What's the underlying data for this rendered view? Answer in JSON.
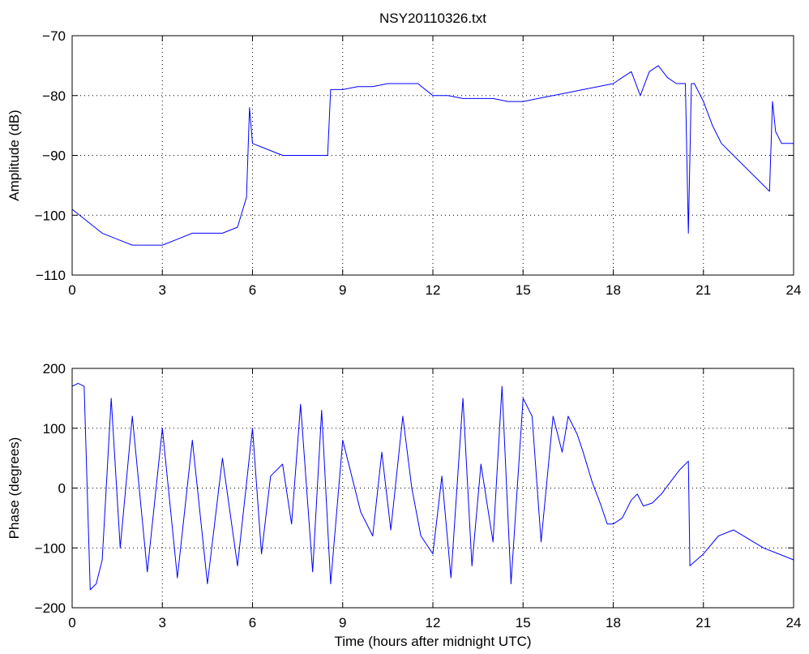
{
  "chart_data": [
    {
      "type": "line",
      "title": "NSY20110326.txt",
      "xlabel": "",
      "ylabel": "Amplitude (dB)",
      "xlim": [
        0,
        24
      ],
      "ylim": [
        -110,
        -70
      ],
      "x_ticks": [
        "0",
        "3",
        "6",
        "9",
        "12",
        "15",
        "18",
        "21",
        "24"
      ],
      "y_ticks": [
        "−70",
        "−80",
        "−90",
        "−100",
        "−110"
      ],
      "grid": true,
      "series": [
        {
          "color": "#0000ff",
          "x": [
            0,
            0.5,
            1,
            1.5,
            2,
            2.5,
            3,
            3.5,
            4,
            4.5,
            5,
            5.5,
            5.8,
            5.9,
            6,
            6.5,
            7,
            7.5,
            8,
            8.5,
            8.6,
            9,
            9.5,
            10,
            10.5,
            11,
            11.5,
            12,
            12.5,
            13,
            13.5,
            14,
            14.5,
            15,
            15.5,
            16,
            16.5,
            17,
            17.5,
            18,
            18.3,
            18.6,
            18.9,
            19.2,
            19.5,
            19.8,
            20.1,
            20.4,
            20.5,
            20.6,
            20.7,
            21,
            21.3,
            21.6,
            22,
            22.4,
            22.8,
            23.2,
            23.3,
            23.4,
            23.6,
            24
          ],
          "y": [
            -99,
            -101,
            -103,
            -104,
            -105,
            -105,
            -105,
            -104,
            -103,
            -103,
            -103,
            -102,
            -97,
            -82,
            -88,
            -89,
            -90,
            -90,
            -90,
            -90,
            -79,
            -79,
            -78.5,
            -78.5,
            -78,
            -78,
            -78,
            -80,
            -80,
            -80.5,
            -80.5,
            -80.5,
            -81,
            -81,
            -80.5,
            -80,
            -79.5,
            -79,
            -78.5,
            -78,
            -77,
            -76,
            -80,
            -76,
            -75,
            -77,
            -78,
            -78,
            -103,
            -78,
            -78,
            -81,
            -85,
            -88,
            -90,
            -92,
            -94,
            -96,
            -81,
            -86,
            -88,
            -88
          ]
        }
      ]
    },
    {
      "type": "line",
      "title": "",
      "xlabel": "Time (hours after midnight UTC)",
      "ylabel": "Phase (degrees)",
      "xlim": [
        0,
        24
      ],
      "ylim": [
        -200,
        200
      ],
      "x_ticks": [
        "0",
        "3",
        "6",
        "9",
        "12",
        "15",
        "18",
        "21",
        "24"
      ],
      "y_ticks": [
        "200",
        "100",
        "0",
        "−100",
        "−200"
      ],
      "grid": true,
      "series": [
        {
          "color": "#0000ff",
          "x": [
            0,
            0.2,
            0.4,
            0.6,
            0.8,
            1,
            1.3,
            1.6,
            2,
            2.5,
            3,
            3.5,
            4,
            4.5,
            5,
            5.5,
            6,
            6.3,
            6.6,
            7,
            7.3,
            7.6,
            8,
            8.3,
            8.6,
            9,
            9.3,
            9.6,
            10,
            10.3,
            10.6,
            11,
            11.3,
            11.6,
            12,
            12.3,
            12.6,
            13,
            13.3,
            13.6,
            14,
            14.3,
            14.6,
            15,
            15.3,
            15.6,
            16,
            16.3,
            16.5,
            16.8,
            17,
            17.3,
            17.6,
            17.8,
            18,
            18.3,
            18.6,
            18.8,
            19,
            19.3,
            19.6,
            19.9,
            20.2,
            20.5,
            20.55,
            21,
            21.5,
            22,
            22.5,
            23,
            23.5,
            24
          ],
          "y": [
            170,
            175,
            170,
            -170,
            -160,
            -120,
            150,
            -100,
            120,
            -140,
            100,
            -150,
            80,
            -160,
            50,
            -130,
            100,
            -110,
            20,
            40,
            -60,
            140,
            -140,
            130,
            -160,
            80,
            20,
            -40,
            -80,
            60,
            -70,
            120,
            0,
            -80,
            -110,
            20,
            -150,
            150,
            -130,
            40,
            -90,
            170,
            -160,
            150,
            120,
            -90,
            120,
            60,
            120,
            90,
            60,
            10,
            -30,
            -60,
            -60,
            -50,
            -20,
            -10,
            -30,
            -25,
            -10,
            10,
            30,
            45,
            -130,
            -110,
            -80,
            -70,
            -85,
            -100,
            -110,
            -120
          ]
        }
      ]
    }
  ]
}
